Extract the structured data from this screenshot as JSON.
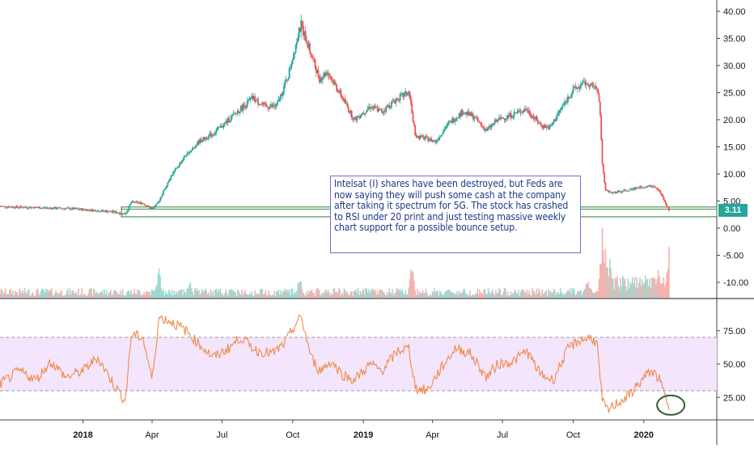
{
  "annotation": {
    "text": "Intelsat (I) shares have been destroyed, but Feds are now saying they will push some cash at the company after taking it spectrum for 5G. The stock has crashed to RSI under 20 print and just testing massive weekly chart support for a possible bounce setup."
  },
  "price_badge": "3.11",
  "colors": {
    "up": "#26a69a",
    "down": "#ef5350",
    "rsi_line": "#f08a4b",
    "rsi_band": "#f3e5fb",
    "support_box": "#2e7d32",
    "ellipse": "#2e5e2e"
  },
  "chart_data": [
    {
      "type": "candlestick",
      "ylim": [
        -13,
        41
      ],
      "y_ticks": [
        "40.00",
        "35.00",
        "30.00",
        "25.00",
        "20.00",
        "15.00",
        "10.00",
        "5.00",
        "0.00",
        "-5.00",
        "-10.00"
      ],
      "y_tick_values": [
        40,
        35,
        30,
        25,
        20,
        15,
        10,
        5,
        0,
        -5,
        -10
      ],
      "x_ticks": [
        "2018",
        "Apr",
        "Jul",
        "Oct",
        "2019",
        "Apr",
        "Jul",
        "Oct",
        "2020"
      ],
      "x_tick_values": [
        "2018-01-01",
        "2018-04-01",
        "2018-07-01",
        "2018-10-01",
        "2019-01-01",
        "2019-04-01",
        "2019-07-01",
        "2019-10-01",
        "2020-01-01"
      ],
      "x_range": [
        "2017-09-15",
        "2020-04-05"
      ],
      "price_path": [
        [
          "2017-09-15",
          4.0
        ],
        [
          "2017-11-01",
          3.8
        ],
        [
          "2017-12-15",
          3.6
        ],
        [
          "2018-01-15",
          3.3
        ],
        [
          "2018-02-10",
          3.0
        ],
        [
          "2018-02-25",
          2.6
        ],
        [
          "2018-03-05",
          4.8
        ],
        [
          "2018-03-20",
          4.6
        ],
        [
          "2018-04-01",
          3.5
        ],
        [
          "2018-04-08",
          4.5
        ],
        [
          "2018-04-25",
          9.5
        ],
        [
          "2018-05-15",
          13.5
        ],
        [
          "2018-06-01",
          16.0
        ],
        [
          "2018-06-20",
          17.5
        ],
        [
          "2018-07-10",
          20.0
        ],
        [
          "2018-07-25",
          22.0
        ],
        [
          "2018-08-10",
          24.0
        ],
        [
          "2018-08-25",
          22.5
        ],
        [
          "2018-09-10",
          22.5
        ],
        [
          "2018-09-25",
          28.0
        ],
        [
          "2018-10-05",
          34.0
        ],
        [
          "2018-10-12",
          37.5
        ],
        [
          "2018-10-25",
          32.0
        ],
        [
          "2018-11-05",
          27.5
        ],
        [
          "2018-11-15",
          29.0
        ],
        [
          "2018-12-01",
          25.0
        ],
        [
          "2018-12-20",
          20.0
        ],
        [
          "2019-01-10",
          22.5
        ],
        [
          "2019-01-25",
          21.5
        ],
        [
          "2019-02-15",
          24.0
        ],
        [
          "2019-03-01",
          25.0
        ],
        [
          "2019-03-10",
          17.0
        ],
        [
          "2019-03-25",
          16.5
        ],
        [
          "2019-04-05",
          16.0
        ],
        [
          "2019-04-20",
          19.0
        ],
        [
          "2019-05-10",
          21.5
        ],
        [
          "2019-05-25",
          20.5
        ],
        [
          "2019-06-10",
          18.0
        ],
        [
          "2019-06-25",
          20.0
        ],
        [
          "2019-07-15",
          21.0
        ],
        [
          "2019-08-01",
          22.0
        ],
        [
          "2019-08-20",
          19.0
        ],
        [
          "2019-09-01",
          18.5
        ],
        [
          "2019-09-15",
          22.0
        ],
        [
          "2019-10-01",
          25.5
        ],
        [
          "2019-10-20",
          27.0
        ],
        [
          "2019-11-01",
          25.5
        ],
        [
          "2019-11-05",
          22.0
        ],
        [
          "2019-11-08",
          12.0
        ],
        [
          "2019-11-12",
          7.0
        ],
        [
          "2019-11-20",
          6.5
        ],
        [
          "2019-12-10",
          7.0
        ],
        [
          "2019-12-25",
          7.5
        ],
        [
          "2020-01-10",
          7.8
        ],
        [
          "2020-01-20",
          7.2
        ],
        [
          "2020-01-28",
          5.0
        ],
        [
          "2020-02-03",
          3.1
        ]
      ],
      "support_zone": {
        "from": "2018-02-20",
        "to": "2020-04-05",
        "low": 2.1,
        "high": 3.9
      },
      "volume_spikes": [
        [
          "2018-04-10",
          0.45
        ],
        [
          "2018-05-20",
          0.3
        ],
        [
          "2018-10-10",
          0.35
        ],
        [
          "2019-03-05",
          0.5
        ],
        [
          "2019-10-20",
          0.3
        ],
        [
          "2019-11-08",
          1.0
        ],
        [
          "2019-11-12",
          0.85
        ],
        [
          "2019-11-18",
          0.55
        ],
        [
          "2020-01-20",
          0.45
        ],
        [
          "2020-02-03",
          0.8
        ]
      ],
      "last_price": 3.11
    },
    {
      "type": "line",
      "ylim": [
        10,
        95
      ],
      "y_ticks": [
        "75.00",
        "50.00",
        "25.00"
      ],
      "y_tick_values": [
        75,
        50,
        25
      ],
      "band": [
        30,
        70
      ],
      "rsi_path": [
        [
          "2017-09-15",
          35
        ],
        [
          "2017-10-10",
          45
        ],
        [
          "2017-11-01",
          38
        ],
        [
          "2017-11-20",
          52
        ],
        [
          "2017-12-10",
          40
        ],
        [
          "2018-01-01",
          45
        ],
        [
          "2018-01-20",
          55
        ],
        [
          "2018-02-10",
          35
        ],
        [
          "2018-02-25",
          22
        ],
        [
          "2018-03-05",
          72
        ],
        [
          "2018-03-20",
          70
        ],
        [
          "2018-04-01",
          38
        ],
        [
          "2018-04-10",
          85
        ],
        [
          "2018-04-25",
          82
        ],
        [
          "2018-05-15",
          75
        ],
        [
          "2018-06-01",
          65
        ],
        [
          "2018-06-20",
          55
        ],
        [
          "2018-07-10",
          62
        ],
        [
          "2018-07-25",
          70
        ],
        [
          "2018-08-15",
          60
        ],
        [
          "2018-09-05",
          58
        ],
        [
          "2018-09-20",
          65
        ],
        [
          "2018-10-05",
          80
        ],
        [
          "2018-10-12",
          85
        ],
        [
          "2018-10-25",
          55
        ],
        [
          "2018-11-05",
          45
        ],
        [
          "2018-11-20",
          52
        ],
        [
          "2018-12-05",
          42
        ],
        [
          "2018-12-20",
          38
        ],
        [
          "2019-01-10",
          50
        ],
        [
          "2019-01-25",
          45
        ],
        [
          "2019-02-15",
          60
        ],
        [
          "2019-03-01",
          62
        ],
        [
          "2019-03-10",
          32
        ],
        [
          "2019-03-25",
          30
        ],
        [
          "2019-04-10",
          45
        ],
        [
          "2019-05-01",
          62
        ],
        [
          "2019-05-20",
          58
        ],
        [
          "2019-06-10",
          40
        ],
        [
          "2019-06-25",
          50
        ],
        [
          "2019-07-15",
          52
        ],
        [
          "2019-08-01",
          60
        ],
        [
          "2019-08-20",
          42
        ],
        [
          "2019-09-05",
          38
        ],
        [
          "2019-09-25",
          62
        ],
        [
          "2019-10-10",
          68
        ],
        [
          "2019-10-25",
          70
        ],
        [
          "2019-11-01",
          65
        ],
        [
          "2019-11-08",
          22
        ],
        [
          "2019-11-15",
          15
        ],
        [
          "2019-11-25",
          20
        ],
        [
          "2019-12-10",
          25
        ],
        [
          "2019-12-25",
          35
        ],
        [
          "2020-01-10",
          45
        ],
        [
          "2020-01-20",
          40
        ],
        [
          "2020-02-03",
          18
        ]
      ],
      "highlight": {
        "date": "2020-02-03",
        "value": 18
      }
    }
  ]
}
